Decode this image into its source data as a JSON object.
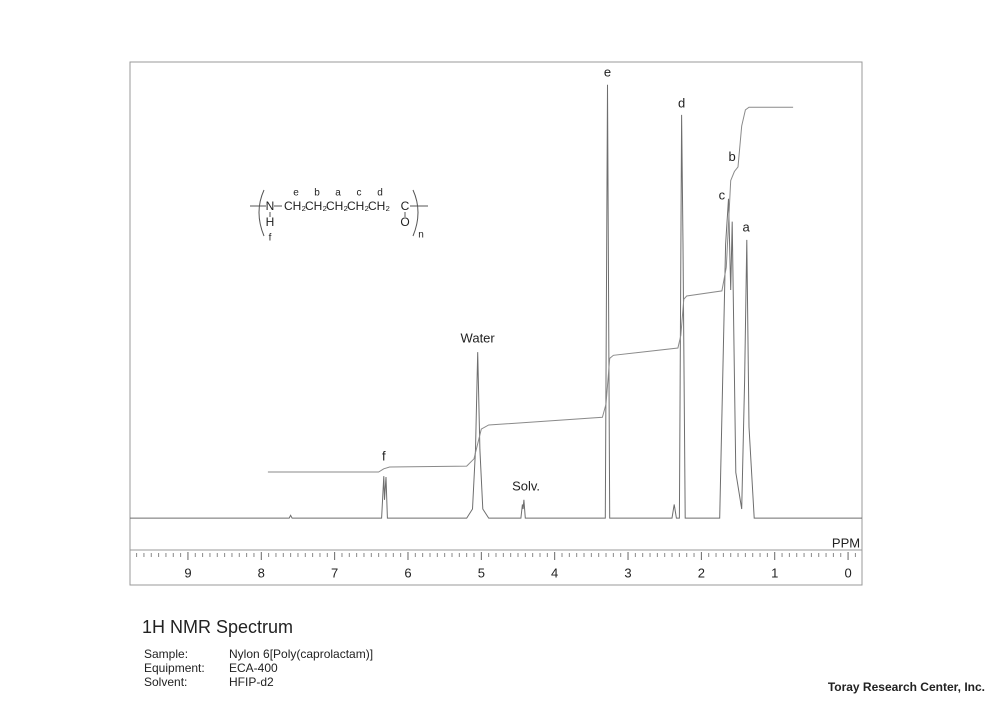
{
  "chart_data": {
    "type": "line",
    "title": "1H NMR Spectrum",
    "xlabel": "PPM",
    "xlim": [
      9.79,
      -0.19
    ],
    "ylim": [
      -7,
      100
    ],
    "xticks": [
      9,
      8,
      7,
      6,
      5,
      4,
      3,
      2,
      1,
      0
    ],
    "xminorticks": [
      9.7,
      9.6,
      9.5,
      9.4,
      9.3,
      9.2,
      9.1,
      8.9,
      8.8,
      8.7,
      8.6,
      8.5,
      8.4,
      8.3,
      8.2,
      8.1,
      7.9,
      7.8,
      7.7,
      7.6,
      7.5,
      7.4,
      7.3,
      7.2,
      7.1,
      6.9,
      6.8,
      6.7,
      6.6,
      6.5,
      6.4,
      6.3,
      6.2,
      6.1,
      5.9,
      5.8,
      5.7,
      5.6,
      5.5,
      5.4,
      5.3,
      5.2,
      5.1,
      4.9,
      4.8,
      4.7,
      4.6,
      4.5,
      4.4,
      4.3,
      4.2,
      4.1,
      3.9,
      3.8,
      3.7,
      3.6,
      3.5,
      3.4,
      3.3,
      3.2,
      3.1,
      2.9,
      2.8,
      2.7,
      2.6,
      2.5,
      2.4,
      2.3,
      2.2,
      2.1,
      1.9,
      1.8,
      1.7,
      1.6,
      1.5,
      1.4,
      1.3,
      1.2,
      1.1,
      0.9,
      0.8,
      0.7,
      0.6,
      0.5,
      0.4,
      0.3,
      0.2,
      0.1,
      -0.1
    ],
    "series": [
      {
        "color": "#6e6e6e",
        "x": [
          9.79,
          7.62,
          7.6,
          7.58,
          6.36,
          6.33,
          6.32,
          6.3,
          6.28,
          5.2,
          5.12,
          5.08,
          5.05,
          5.02,
          4.98,
          4.9,
          4.46,
          4.44,
          4.43,
          4.42,
          4.4,
          3.31,
          3.28,
          3.25,
          2.4,
          2.37,
          2.34,
          2.3,
          2.27,
          2.25,
          2.22,
          1.75,
          1.67,
          1.63,
          1.6,
          1.58,
          1.53,
          1.45,
          1.41,
          1.38,
          1.35,
          1.28,
          -0.19
        ],
        "values": [
          0,
          0,
          0.6,
          0,
          0,
          9.2,
          4,
          9,
          0,
          0,
          2,
          15,
          36.4,
          15,
          2,
          0,
          0,
          3,
          2,
          4,
          0,
          0,
          95,
          0,
          0,
          3,
          0,
          0,
          88.4,
          60,
          0,
          0,
          60,
          70,
          50,
          65,
          10,
          2,
          30,
          61,
          20,
          0,
          0
        ]
      },
      {
        "color": "#8a8a8a",
        "x": [
          7.91,
          6.4,
          6.33,
          6.25,
          5.2,
          5.1,
          5.0,
          4.9,
          3.35,
          3.3,
          3.25,
          3.2,
          2.32,
          2.28,
          2.24,
          2.2,
          1.72,
          1.66,
          1.6,
          1.55,
          1.5,
          1.45,
          1.4,
          1.35,
          0.75
        ],
        "values": [
          10.1,
          10.1,
          10.8,
          11.2,
          11.4,
          13,
          19.5,
          20.4,
          22.1,
          25,
          35,
          35.7,
          37.3,
          40,
          48,
          48.7,
          49.8,
          55,
          74,
          76,
          77,
          86,
          89.5,
          90.1,
          90.1
        ]
      }
    ],
    "annotations": [
      {
        "text": "e",
        "x": 3.28,
        "y": 97.6
      },
      {
        "text": "d",
        "x": 2.27,
        "y": 90.8
      },
      {
        "text": "b",
        "x": 1.58,
        "y": 79
      },
      {
        "text": "c",
        "x": 1.72,
        "y": 70.6
      },
      {
        "text": "a",
        "x": 1.39,
        "y": 63.6
      },
      {
        "text": "Water",
        "x": 5.05,
        "y": 39.3
      },
      {
        "text": "f",
        "x": 6.33,
        "y": 13.4
      },
      {
        "text": "Solv.",
        "x": 4.39,
        "y": 6.8
      }
    ],
    "structure": {
      "n_atom": "N",
      "h_atom": "H",
      "h_label": "f",
      "groups": [
        "CH₂",
        "CH₂",
        "CH₂",
        "CH₂",
        "CH₂"
      ],
      "group_labels": [
        "e",
        "b",
        "a",
        "c",
        "d"
      ],
      "c_atom": "C",
      "o_atom": "O",
      "repeat": "n"
    },
    "details": [
      {
        "label": "Sample:",
        "value": "Nylon 6[Poly(caprolactam)]"
      },
      {
        "label": "Equipment:",
        "value": "ECA-400"
      },
      {
        "label": "Solvent:",
        "value": "HFIP-d2"
      }
    ],
    "credit": "Toray Research Center, Inc."
  }
}
